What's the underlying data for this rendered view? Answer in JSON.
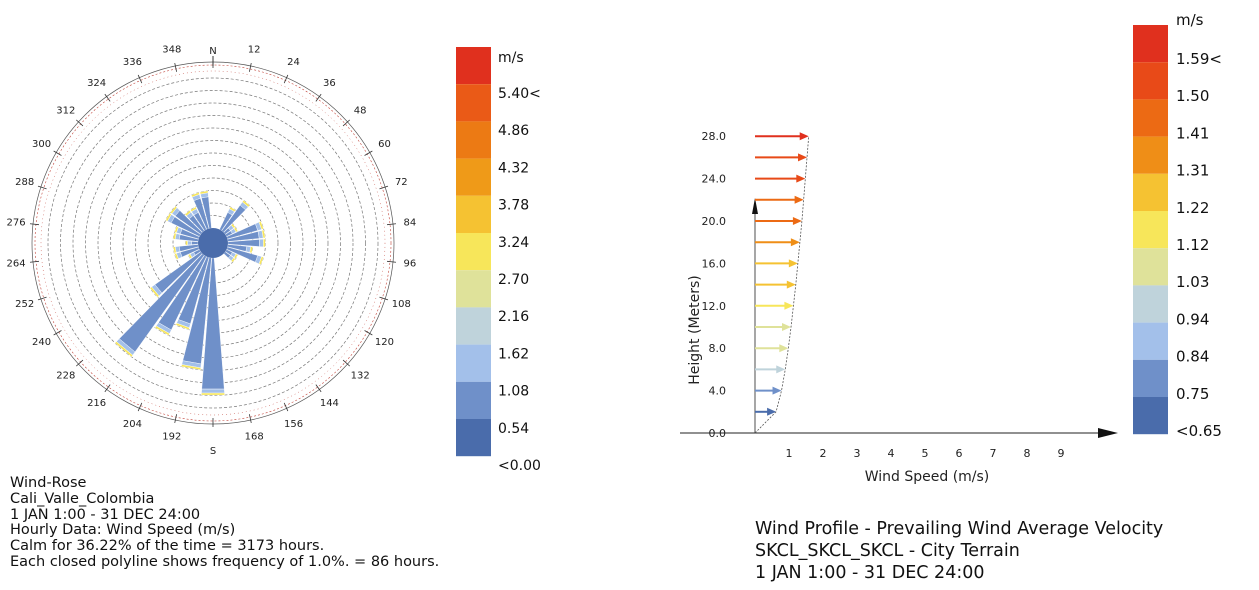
{
  "rose": {
    "north_label": "N",
    "south_label": "S",
    "direction_labels": [
      "348",
      "12",
      "24",
      "36",
      "48",
      "60",
      "72",
      "84",
      "96",
      "108",
      "120",
      "132",
      "144",
      "156",
      "168",
      "192",
      "204",
      "216",
      "228",
      "240",
      "252",
      "264",
      "276",
      "288",
      "300",
      "312",
      "324",
      "336"
    ],
    "caption": {
      "title": "Wind-Rose",
      "location": "Cali_Valle_Colombia",
      "period": "1 JAN 1:00 - 31 DEC 24:00",
      "data": "Hourly Data: Wind Speed (m/s)",
      "calm": "Calm for 36.22% of the time = 3173 hours.",
      "polyline": "Each closed polyline shows frequency of 1.0%. = 86 hours."
    },
    "legend": {
      "unit": "m/s",
      "labels": [
        "5.40<",
        "4.86",
        "4.32",
        "3.78",
        "3.24",
        "2.70",
        "2.16",
        "1.62",
        "1.08",
        "0.54",
        "<0.00"
      ],
      "colors": [
        "#e0301e",
        "#ea5a17",
        "#ec7a14",
        "#ef9a18",
        "#f5c232",
        "#f7e65a",
        "#dfe29a",
        "#bfd3db",
        "#a3c0ea",
        "#6f90c9",
        "#4a6cab"
      ]
    }
  },
  "profile": {
    "y_ticks": [
      "28.0",
      "24.0",
      "20.0",
      "16.0",
      "12.0",
      "8.0",
      "4.0",
      "0.0"
    ],
    "x_ticks": [
      "1",
      "2",
      "3",
      "4",
      "5",
      "6",
      "7",
      "8",
      "9"
    ],
    "caption": {
      "title": "Wind Profile  - Prevailing Wind Average Velocity",
      "station": "SKCL_SKCL_SKCL - City Terrain",
      "period": "1 JAN 1:00 - 31 DEC 24:00"
    },
    "legend": {
      "unit": "m/s",
      "labels": [
        "1.59<",
        "1.50",
        "1.41",
        "1.31",
        "1.22",
        "1.12",
        "1.03",
        "0.94",
        "0.84",
        "0.75",
        "<0.65"
      ],
      "colors": [
        "#e0301e",
        "#e84a18",
        "#ec6a14",
        "#ef8e17",
        "#f5c232",
        "#f7e65a",
        "#dfe29a",
        "#bfd3db",
        "#a3c0ea",
        "#6f90c9",
        "#4a6cab"
      ]
    }
  },
  "chart_data": [
    {
      "type": "wind-rose",
      "title": "Wind-Rose",
      "unit": "m/s",
      "directions": [
        0,
        10,
        20,
        30,
        40,
        50,
        60,
        70,
        80,
        90,
        100,
        110,
        120,
        130,
        140,
        150,
        160,
        170,
        180,
        190,
        200,
        210,
        220,
        230,
        240,
        250,
        260,
        270,
        280,
        290,
        300,
        310,
        320,
        330,
        340,
        350
      ],
      "frequency_percent": [
        0,
        0,
        0,
        2,
        3,
        1,
        1,
        3,
        3,
        3,
        2,
        3,
        1,
        1,
        0,
        0,
        0,
        0,
        11,
        9,
        6,
        7,
        10,
        5,
        1,
        2,
        2,
        1,
        2,
        2,
        3,
        3,
        2,
        2,
        3,
        3
      ],
      "frequency_ring_step_percent": 1.0,
      "calm_percent": 36.22,
      "calm_hours": 3173,
      "speed_bins": [
        "<0.00",
        "0.54",
        "1.08",
        "1.62",
        "2.16",
        "2.70",
        "3.24",
        "3.78",
        "4.32",
        "4.86",
        "5.40<"
      ]
    },
    {
      "type": "wind-profile",
      "title": "Wind Profile  - Prevailing Wind Average Velocity",
      "xlabel": "Wind Speed (m/s)",
      "ylabel": "Height (Meters)",
      "xlim": [
        0,
        9
      ],
      "ylim": [
        0,
        28
      ],
      "heights": [
        2,
        4,
        6,
        8,
        10,
        12,
        14,
        16,
        18,
        20,
        22,
        24,
        26,
        28
      ],
      "speeds": [
        0.62,
        0.78,
        0.89,
        0.98,
        1.06,
        1.13,
        1.2,
        1.26,
        1.32,
        1.38,
        1.43,
        1.48,
        1.53,
        1.58
      ]
    }
  ]
}
